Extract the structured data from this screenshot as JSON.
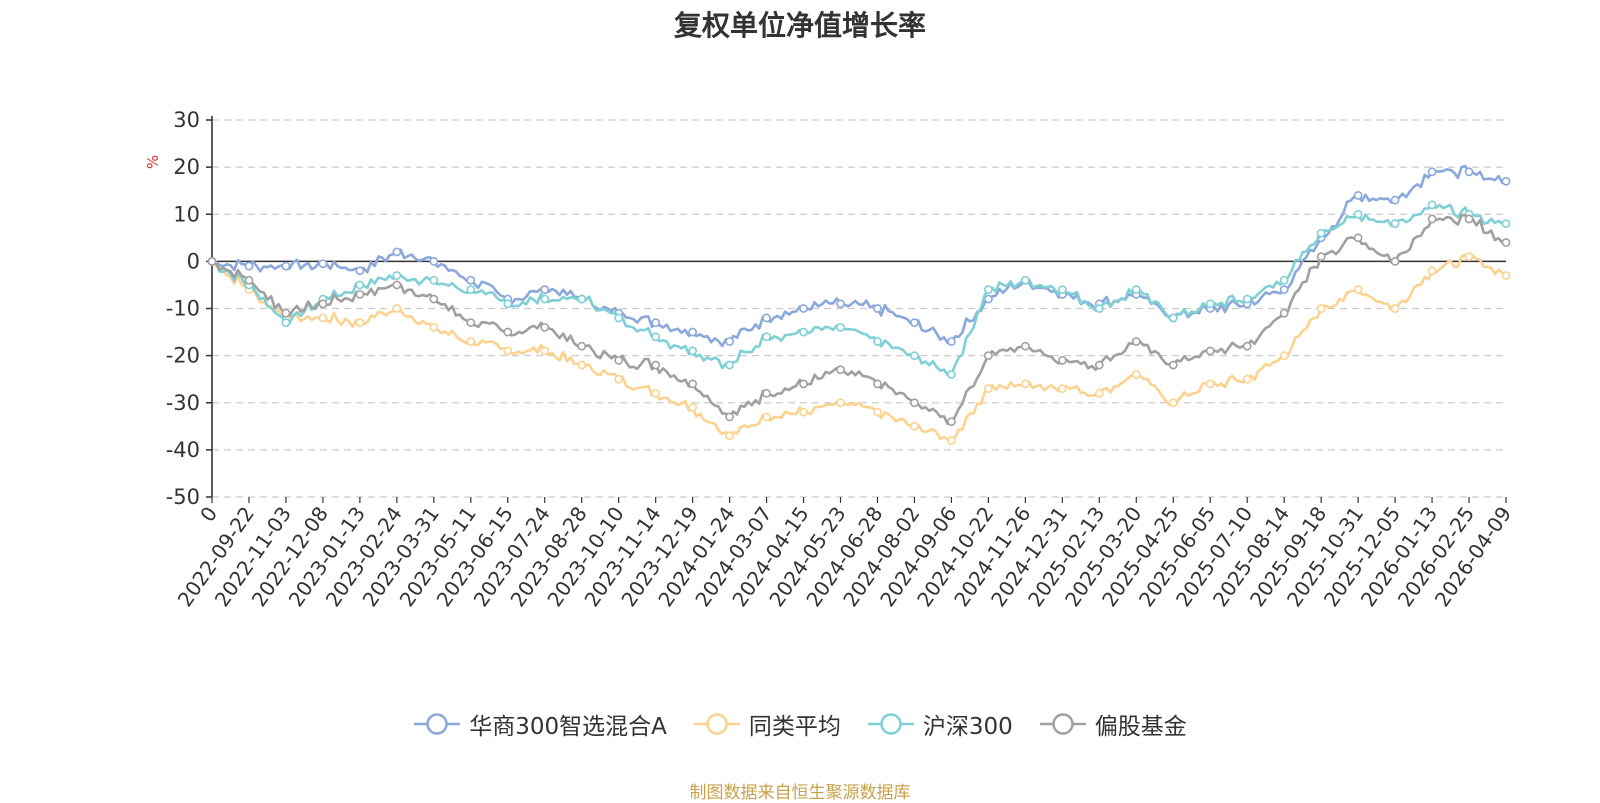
{
  "chart_data": {
    "type": "line",
    "title": "复权单位净值增长率",
    "ylabel": "%",
    "xlabel": "",
    "ylim": [
      -50,
      30
    ],
    "yticks": [
      30,
      20,
      10,
      0,
      -10,
      -20,
      -30,
      -40,
      -50
    ],
    "categories": [
      "0",
      "2022-09-22",
      "2022-11-03",
      "2022-12-08",
      "2023-01-13",
      "2023-02-24",
      "2023-03-31",
      "2023-05-11",
      "2023-06-15",
      "2023-07-24",
      "2023-08-28",
      "2023-10-10",
      "2023-11-14",
      "2023-12-19",
      "2024-01-24",
      "2024-03-07",
      "2024-04-15",
      "2024-05-23",
      "2024-06-28",
      "2024-08-02",
      "2024-09-06",
      "2024-10-22",
      "2024-11-26",
      "2024-12-31",
      "2025-02-13",
      "2025-03-20",
      "2025-04-25",
      "2025-06-05",
      "2025-07-10",
      "2025-08-14",
      "2025-09-18",
      "2025-10-31",
      "2025-12-05",
      "2026-01-13",
      "2026-02-25",
      "2026-04-09"
    ],
    "grid": true,
    "legend_position": "bottom",
    "series": [
      {
        "name": "华商300智选混合A",
        "color": "#8ba8dc",
        "values": [
          0,
          -1,
          -1,
          -0.5,
          -2,
          2,
          0,
          -4,
          -8,
          -6,
          -8,
          -11,
          -13,
          -15,
          -17,
          -12,
          -10,
          -9,
          -10,
          -13,
          -17,
          -8,
          -4,
          -7,
          -9,
          -7,
          -12,
          -10,
          -9,
          -6,
          5,
          14,
          13,
          19,
          19,
          17
        ]
      },
      {
        "name": "同类平均",
        "color": "#fcd28e",
        "values": [
          0,
          -6,
          -12,
          -12,
          -13,
          -10,
          -14,
          -17,
          -19,
          -19,
          -22,
          -25,
          -28,
          -31,
          -37,
          -33,
          -32,
          -30,
          -32,
          -35,
          -38,
          -27,
          -26,
          -27,
          -28,
          -24,
          -30,
          -26,
          -25,
          -20,
          -10,
          -6,
          -10,
          -2,
          1,
          -3
        ]
      },
      {
        "name": "沪深300",
        "color": "#7fd0d6",
        "values": [
          0,
          -5,
          -13,
          -8,
          -5,
          -3,
          -4,
          -6,
          -9,
          -8,
          -8,
          -12,
          -16,
          -19,
          -22,
          -16,
          -15,
          -14,
          -17,
          -20,
          -24,
          -6,
          -4,
          -6,
          -10,
          -6,
          -12,
          -9,
          -8,
          -4,
          6,
          10,
          8,
          12,
          10,
          8
        ]
      },
      {
        "name": "偏股基金",
        "color": "#a0a0a0",
        "values": [
          0,
          -4,
          -11,
          -9,
          -7,
          -5,
          -8,
          -13,
          -15,
          -14,
          -18,
          -21,
          -22,
          -26,
          -33,
          -28,
          -26,
          -23,
          -26,
          -30,
          -34,
          -20,
          -18,
          -21,
          -22,
          -17,
          -22,
          -19,
          -18,
          -11,
          1,
          5,
          0,
          9,
          9,
          4
        ]
      }
    ]
  },
  "source_note": "制图数据来自恒生聚源数据库"
}
